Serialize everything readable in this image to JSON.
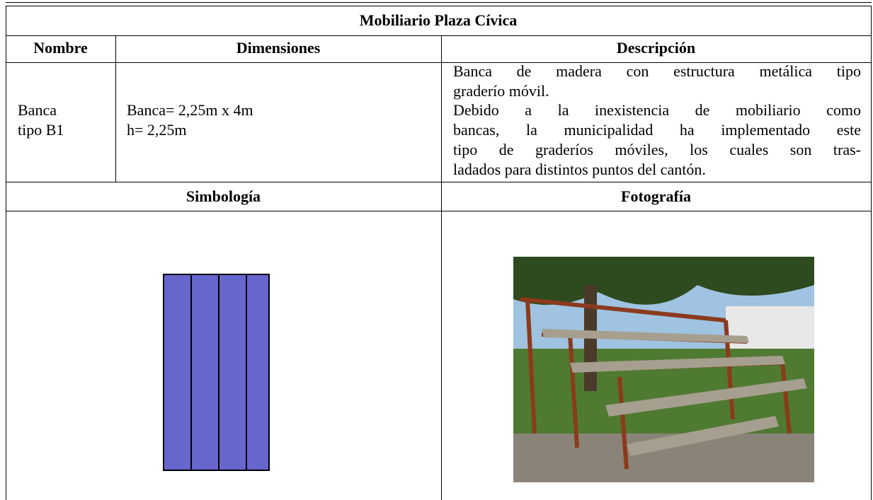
{
  "table": {
    "title": "Mobiliario Plaza Cívica",
    "headers": [
      "Nombre",
      "Dimensiones",
      "Descripción"
    ],
    "rows": [
      [
        [
          "Banca",
          "tipo B1"
        ],
        [
          "Banca= 2,25m x 4m",
          "h= 2,25m"
        ],
        [
          "Banca de madera con estructura metálica tipo",
          "graderío móvil.",
          "Debido a la inexistencia de mobiliario como",
          "bancas, la municipalidad ha implementado este",
          "tipo de graderíos móviles, los cuales son tras-",
          "ladados para distintos puntos del cantón."
        ]
      ]
    ],
    "subheaders": [
      "Simbología",
      "Fotografía"
    ]
  }
}
